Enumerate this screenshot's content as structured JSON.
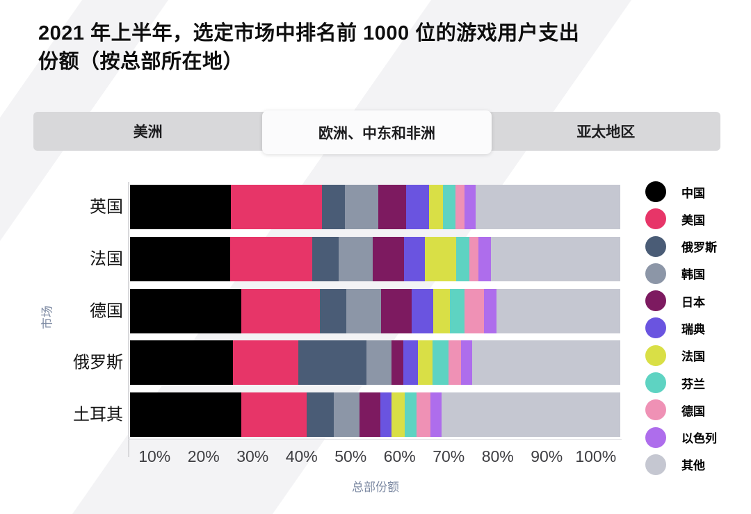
{
  "page": {
    "background": "#ffffff",
    "watermark_color": "#f3f3f5"
  },
  "header": {
    "title_lines": [
      "2021 年上半年，选定市场中排名前 1000 位的游戏用户支出",
      "份额（按总部所在地）"
    ]
  },
  "tabs": {
    "active_index": 1,
    "items": [
      {
        "label": "美洲"
      },
      {
        "label": "欧洲、中东和非洲"
      },
      {
        "label": "亚太地区"
      }
    ]
  },
  "colors": {
    "tab_bar": "#d8d8da",
    "tab_active": "#fbfbfc",
    "axis_line": "#d9d9dc",
    "tick_label": "#3e3e42",
    "axis_title": "#7d8aa3"
  },
  "chart_data": {
    "type": "bar",
    "stacked": true,
    "orientation": "horizontal",
    "grid": false,
    "legend_position": "right",
    "title": "2021 年上半年，选定市场中排名前 1000 位的游戏用户支出份额（按总部所在地）",
    "xlabel": "总部份额",
    "ylabel": "市场",
    "xlim": [
      0,
      100
    ],
    "x_ticks": [
      "10%",
      "20%",
      "30%",
      "40%",
      "50%",
      "60%",
      "70%",
      "80%",
      "90%",
      "100%"
    ],
    "categories": [
      "英国",
      "法国",
      "德国",
      "俄罗斯",
      "土耳其"
    ],
    "series": [
      {
        "name": "中国",
        "color": "#000000",
        "values": [
          20.6,
          20.4,
          22.7,
          21.0,
          22.7
        ]
      },
      {
        "name": "美国",
        "color": "#e73568",
        "values": [
          18.6,
          16.7,
          16.0,
          13.3,
          13.3
        ]
      },
      {
        "name": "俄罗斯",
        "color": "#4a5c76",
        "values": [
          4.7,
          5.5,
          5.4,
          14.0,
          5.6
        ]
      },
      {
        "name": "韩国",
        "color": "#8c96a7",
        "values": [
          6.7,
          6.9,
          7.1,
          5.1,
          5.2
        ]
      },
      {
        "name": "日本",
        "color": "#7d1a60",
        "values": [
          5.7,
          6.4,
          6.2,
          2.4,
          4.2
        ]
      },
      {
        "name": "瑞典",
        "color": "#6a54e0",
        "values": [
          4.7,
          4.3,
          4.5,
          3.0,
          2.4
        ]
      },
      {
        "name": "法国",
        "color": "#d9df46",
        "values": [
          2.8,
          6.3,
          3.3,
          2.9,
          2.6
        ]
      },
      {
        "name": "芬兰",
        "color": "#5ed3c2",
        "values": [
          2.6,
          2.7,
          3.1,
          3.3,
          2.4
        ]
      },
      {
        "name": "德国",
        "color": "#ef91b5",
        "values": [
          1.8,
          1.8,
          3.9,
          2.5,
          2.9
        ]
      },
      {
        "name": "以色列",
        "color": "#ae6dec",
        "values": [
          2.3,
          2.6,
          2.6,
          2.3,
          2.2
        ]
      },
      {
        "name": "其他",
        "color": "#c5c7d1",
        "values": [
          29.5,
          26.4,
          25.2,
          30.2,
          36.5
        ]
      }
    ]
  }
}
